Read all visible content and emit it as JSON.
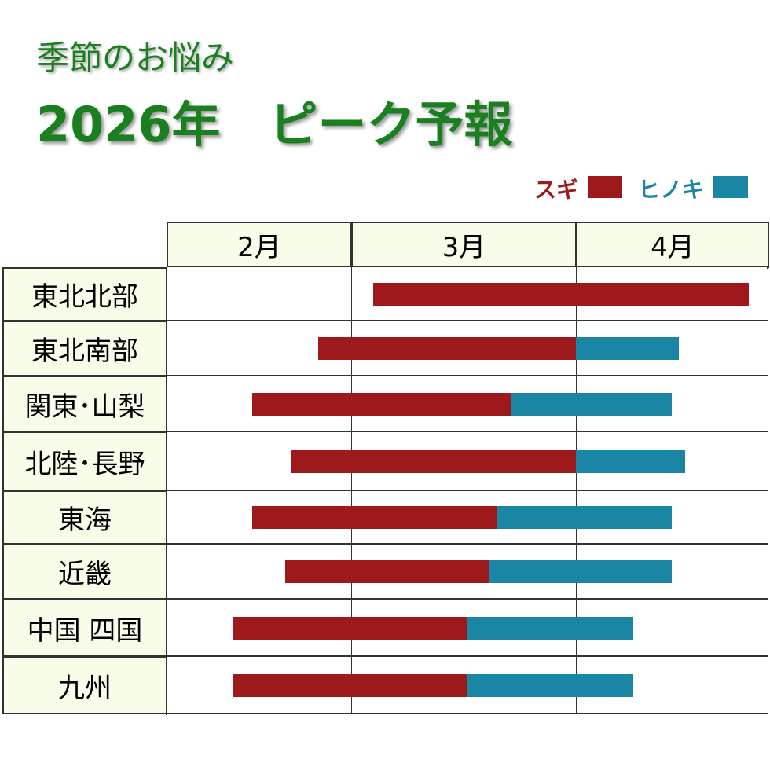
{
  "title_line1": "季節のお悩み",
  "title_line2": "2026年　ピーク予報",
  "colors": {
    "sugi": "#9e191b",
    "hinoki": "#1b86a3",
    "title": "#1a7f1f",
    "header_bg": "#f8fde9"
  },
  "chart_data": {
    "type": "gantt",
    "year": 2026,
    "legend": [
      {
        "name": "スギ",
        "color": "#9e191b"
      },
      {
        "name": "ヒノキ",
        "color": "#1b86a3"
      }
    ],
    "legend_placement": "top-right",
    "months": [
      "2月",
      "3月",
      "4月"
    ],
    "rows": [
      {
        "region": "東北北部",
        "sugi": [
          "2026-03-03",
          "2026-04-27"
        ],
        "hinoki": null
      },
      {
        "region": "東北南部",
        "sugi": [
          "2026-02-23",
          "2026-03-31"
        ],
        "hinoki": [
          "2026-03-31",
          "2026-04-16"
        ]
      },
      {
        "region": "関東･山梨",
        "sugi": [
          "2026-02-13",
          "2026-03-22"
        ],
        "hinoki": [
          "2026-03-22",
          "2026-04-15"
        ]
      },
      {
        "region": "北陸･長野",
        "sugi": [
          "2026-02-19",
          "2026-03-31"
        ],
        "hinoki": [
          "2026-03-31",
          "2026-04-17"
        ]
      },
      {
        "region": "東海",
        "sugi": [
          "2026-02-13",
          "2026-03-20"
        ],
        "hinoki": [
          "2026-03-20",
          "2026-04-15"
        ]
      },
      {
        "region": "近畿",
        "sugi": [
          "2026-02-18",
          "2026-03-19"
        ],
        "hinoki": [
          "2026-03-19",
          "2026-04-15"
        ]
      },
      {
        "region": "中国 四国",
        "sugi": [
          "2026-02-10",
          "2026-03-16"
        ],
        "hinoki": [
          "2026-03-16",
          "2026-04-09"
        ]
      },
      {
        "region": "九州",
        "sugi": [
          "2026-02-10",
          "2026-03-16"
        ],
        "hinoki": [
          "2026-03-16",
          "2026-04-09"
        ]
      }
    ]
  }
}
